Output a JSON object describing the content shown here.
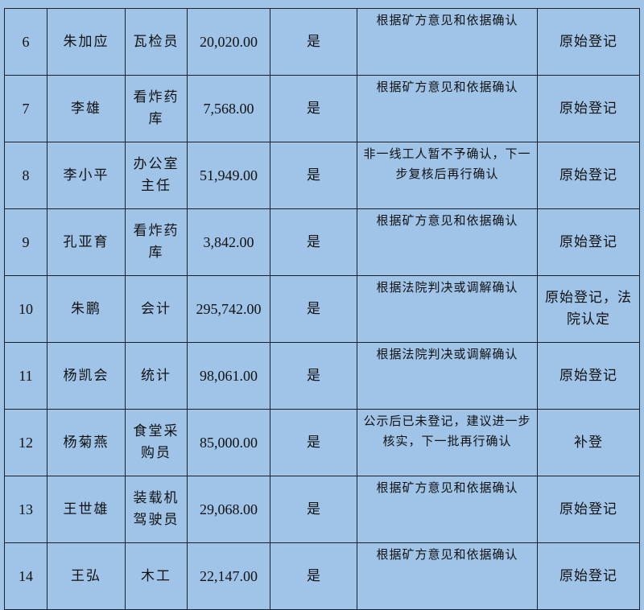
{
  "rows": [
    {
      "no": "6",
      "name": "朱加应",
      "job": "瓦检员",
      "amount": "20,020.00",
      "confirmed": "是",
      "remark": "根据矿方意见和依据确认",
      "status": "原始登记"
    },
    {
      "no": "7",
      "name": "李雄",
      "job": "看炸药库",
      "amount": "7,568.00",
      "confirmed": "是",
      "remark": "根据矿方意见和依据确认",
      "status": "原始登记"
    },
    {
      "no": "8",
      "name": "李小平",
      "job": "办公室主任",
      "amount": "51,949.00",
      "confirmed": "是",
      "remark": "非一线工人暂不予确认，下一步复核后再行确认",
      "status": "原始登记"
    },
    {
      "no": "9",
      "name": "孔亚育",
      "job": "看炸药库",
      "amount": "3,842.00",
      "confirmed": "是",
      "remark": "根据矿方意见和依据确认",
      "status": "原始登记"
    },
    {
      "no": "10",
      "name": "朱鹏",
      "job": "会计",
      "amount": "295,742.00",
      "confirmed": "是",
      "remark": "根据法院判决或调解确认",
      "status": "原始登记，法院认定"
    },
    {
      "no": "11",
      "name": "杨凯会",
      "job": "统计",
      "amount": "98,061.00",
      "confirmed": "是",
      "remark": "根据法院判决或调解确认",
      "status": "原始登记"
    },
    {
      "no": "12",
      "name": "杨菊燕",
      "job": "食堂采购员",
      "amount": "85,000.00",
      "confirmed": "是",
      "remark": "公示后已未登记，建议进一步核实，下一批再行确认",
      "status": "补登"
    },
    {
      "no": "13",
      "name": "王世雄",
      "job": "装载机驾驶员",
      "amount": "29,068.00",
      "confirmed": "是",
      "remark": "根据矿方意见和依据确认",
      "status": "原始登记"
    },
    {
      "no": "14",
      "name": "王弘",
      "job": "木工",
      "amount": "22,147.00",
      "confirmed": "是",
      "remark": "根据矿方意见和依据确认",
      "status": "原始登记"
    }
  ]
}
